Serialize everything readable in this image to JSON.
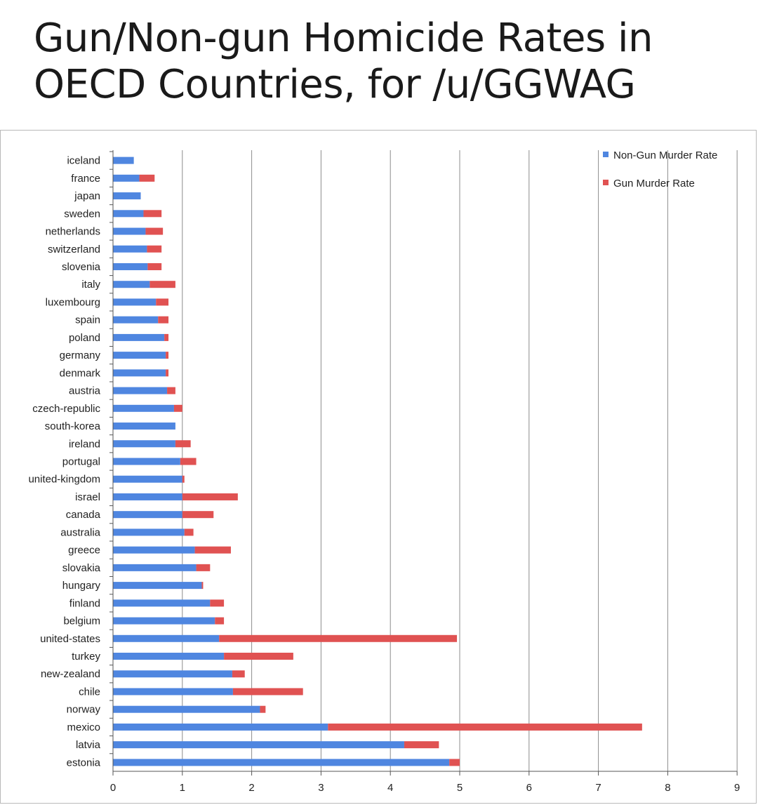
{
  "header": {
    "title_line1": "Gun/Non-gun Homicide Rates in",
    "title_line2": "OECD Countries, for /u/GGWAG"
  },
  "colors": {
    "non_gun": "#4f86e0",
    "gun": "#e05252",
    "grid": "#8c8c8c"
  },
  "chart_data": {
    "type": "bar",
    "orientation": "horizontal",
    "stacked": true,
    "title": "Gun/Non-gun Homicide Rates in OECD Countries, for /u/GGWAG",
    "xlabel": "",
    "ylabel": "",
    "xlim": [
      0,
      9
    ],
    "xticks": [
      "0",
      "1",
      "2",
      "3",
      "4",
      "5",
      "6",
      "7",
      "8",
      "9"
    ],
    "grid": "vertical",
    "legend_position": "top-right",
    "categories": [
      "iceland",
      "france",
      "japan",
      "sweden",
      "netherlands",
      "switzerland",
      "slovenia",
      "italy",
      "luxembourg",
      "spain",
      "poland",
      "germany",
      "denmark",
      "austria",
      "czech-republic",
      "south-korea",
      "ireland",
      "portugal",
      "united-kingdom",
      "israel",
      "canada",
      "australia",
      "greece",
      "slovakia",
      "hungary",
      "finland",
      "belgium",
      "united-states",
      "turkey",
      "new-zealand",
      "chile",
      "norway",
      "mexico",
      "latvia",
      "estonia"
    ],
    "series": [
      {
        "name": "Non-Gun Murder Rate",
        "values": [
          0.3,
          0.38,
          0.4,
          0.44,
          0.47,
          0.49,
          0.5,
          0.53,
          0.62,
          0.65,
          0.74,
          0.76,
          0.76,
          0.78,
          0.88,
          0.9,
          0.9,
          0.97,
          1.0,
          1.0,
          1.0,
          1.03,
          1.18,
          1.2,
          1.28,
          1.4,
          1.47,
          1.53,
          1.6,
          1.72,
          1.73,
          2.12,
          3.1,
          4.2,
          4.85
        ]
      },
      {
        "name": "Gun Murder Rate",
        "values": [
          0.0,
          0.22,
          0.0,
          0.26,
          0.25,
          0.21,
          0.2,
          0.37,
          0.18,
          0.15,
          0.06,
          0.04,
          0.04,
          0.12,
          0.12,
          0.0,
          0.22,
          0.23,
          0.03,
          0.8,
          0.45,
          0.13,
          0.52,
          0.2,
          0.02,
          0.2,
          0.13,
          3.43,
          1.0,
          0.18,
          1.01,
          0.08,
          4.53,
          0.5,
          0.15
        ]
      }
    ]
  }
}
